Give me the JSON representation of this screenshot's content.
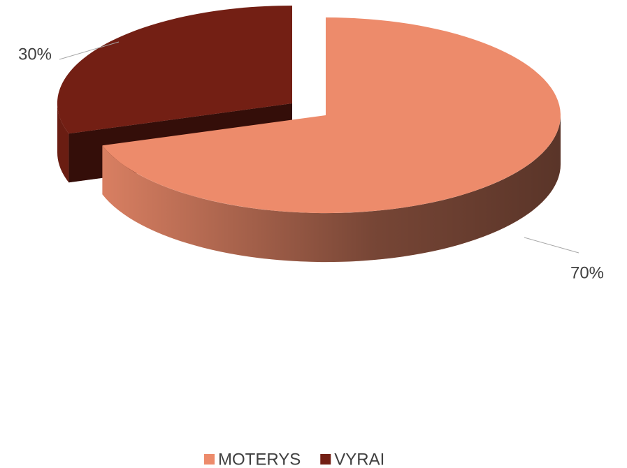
{
  "chart_data": {
    "type": "pie",
    "categories": [
      "MOTERYS",
      "VYRAI"
    ],
    "values": [
      70,
      30
    ],
    "value_labels": [
      "70%",
      "30%"
    ],
    "colors": [
      "#ED8B6B",
      "#731F14"
    ],
    "legend": "bottom"
  }
}
